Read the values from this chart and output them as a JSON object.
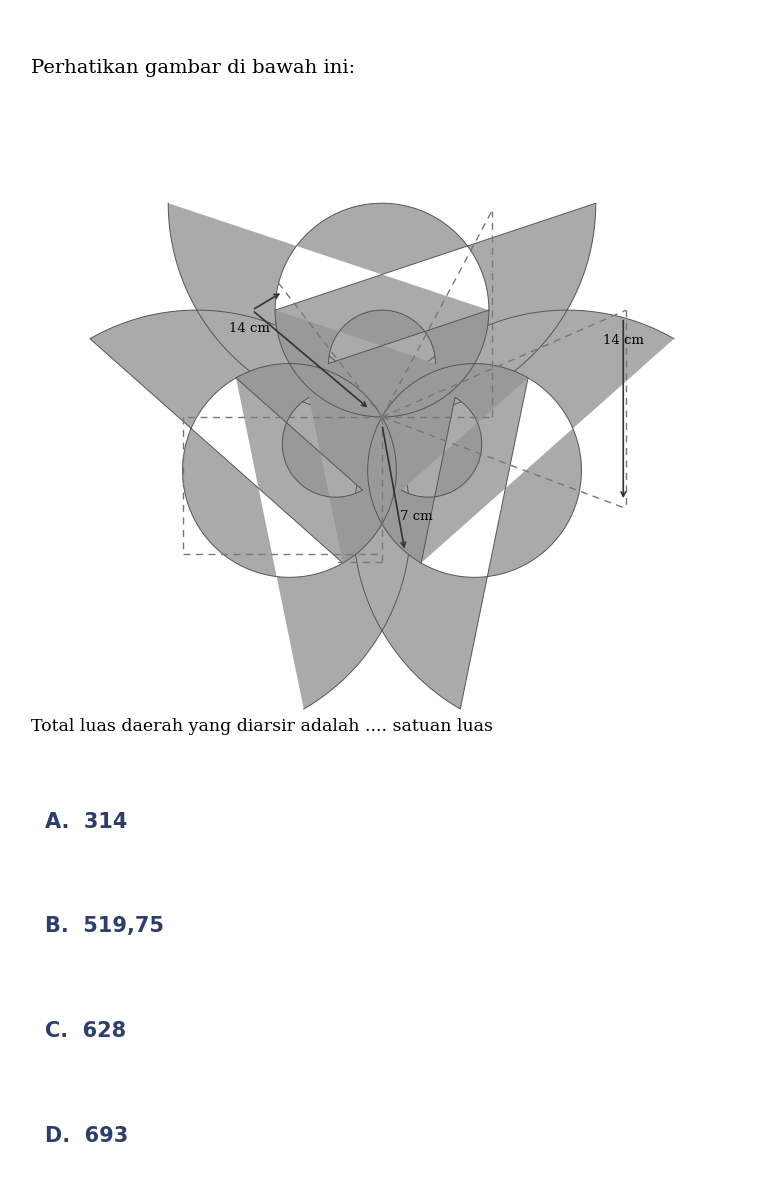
{
  "title": "Perhatikan gambar di bawah ini:",
  "question": "Total luas daerah yang diarsir adalah .... satuan luas",
  "choices": [
    "A.  314",
    "B.  519,75",
    "C.  628",
    "D.  693"
  ],
  "label_14cm_left": "14 cm",
  "label_14cm_right": "14 cm",
  "label_7cm": "7 cm",
  "bg_color": "#ffffff",
  "shape_color": "#aaaaaa",
  "inner_color": "#999999",
  "choice_bg": "#e8e8ec",
  "text_color": "#2c3e6b",
  "dashed_color": "#777777",
  "arrow_color": "#333333"
}
